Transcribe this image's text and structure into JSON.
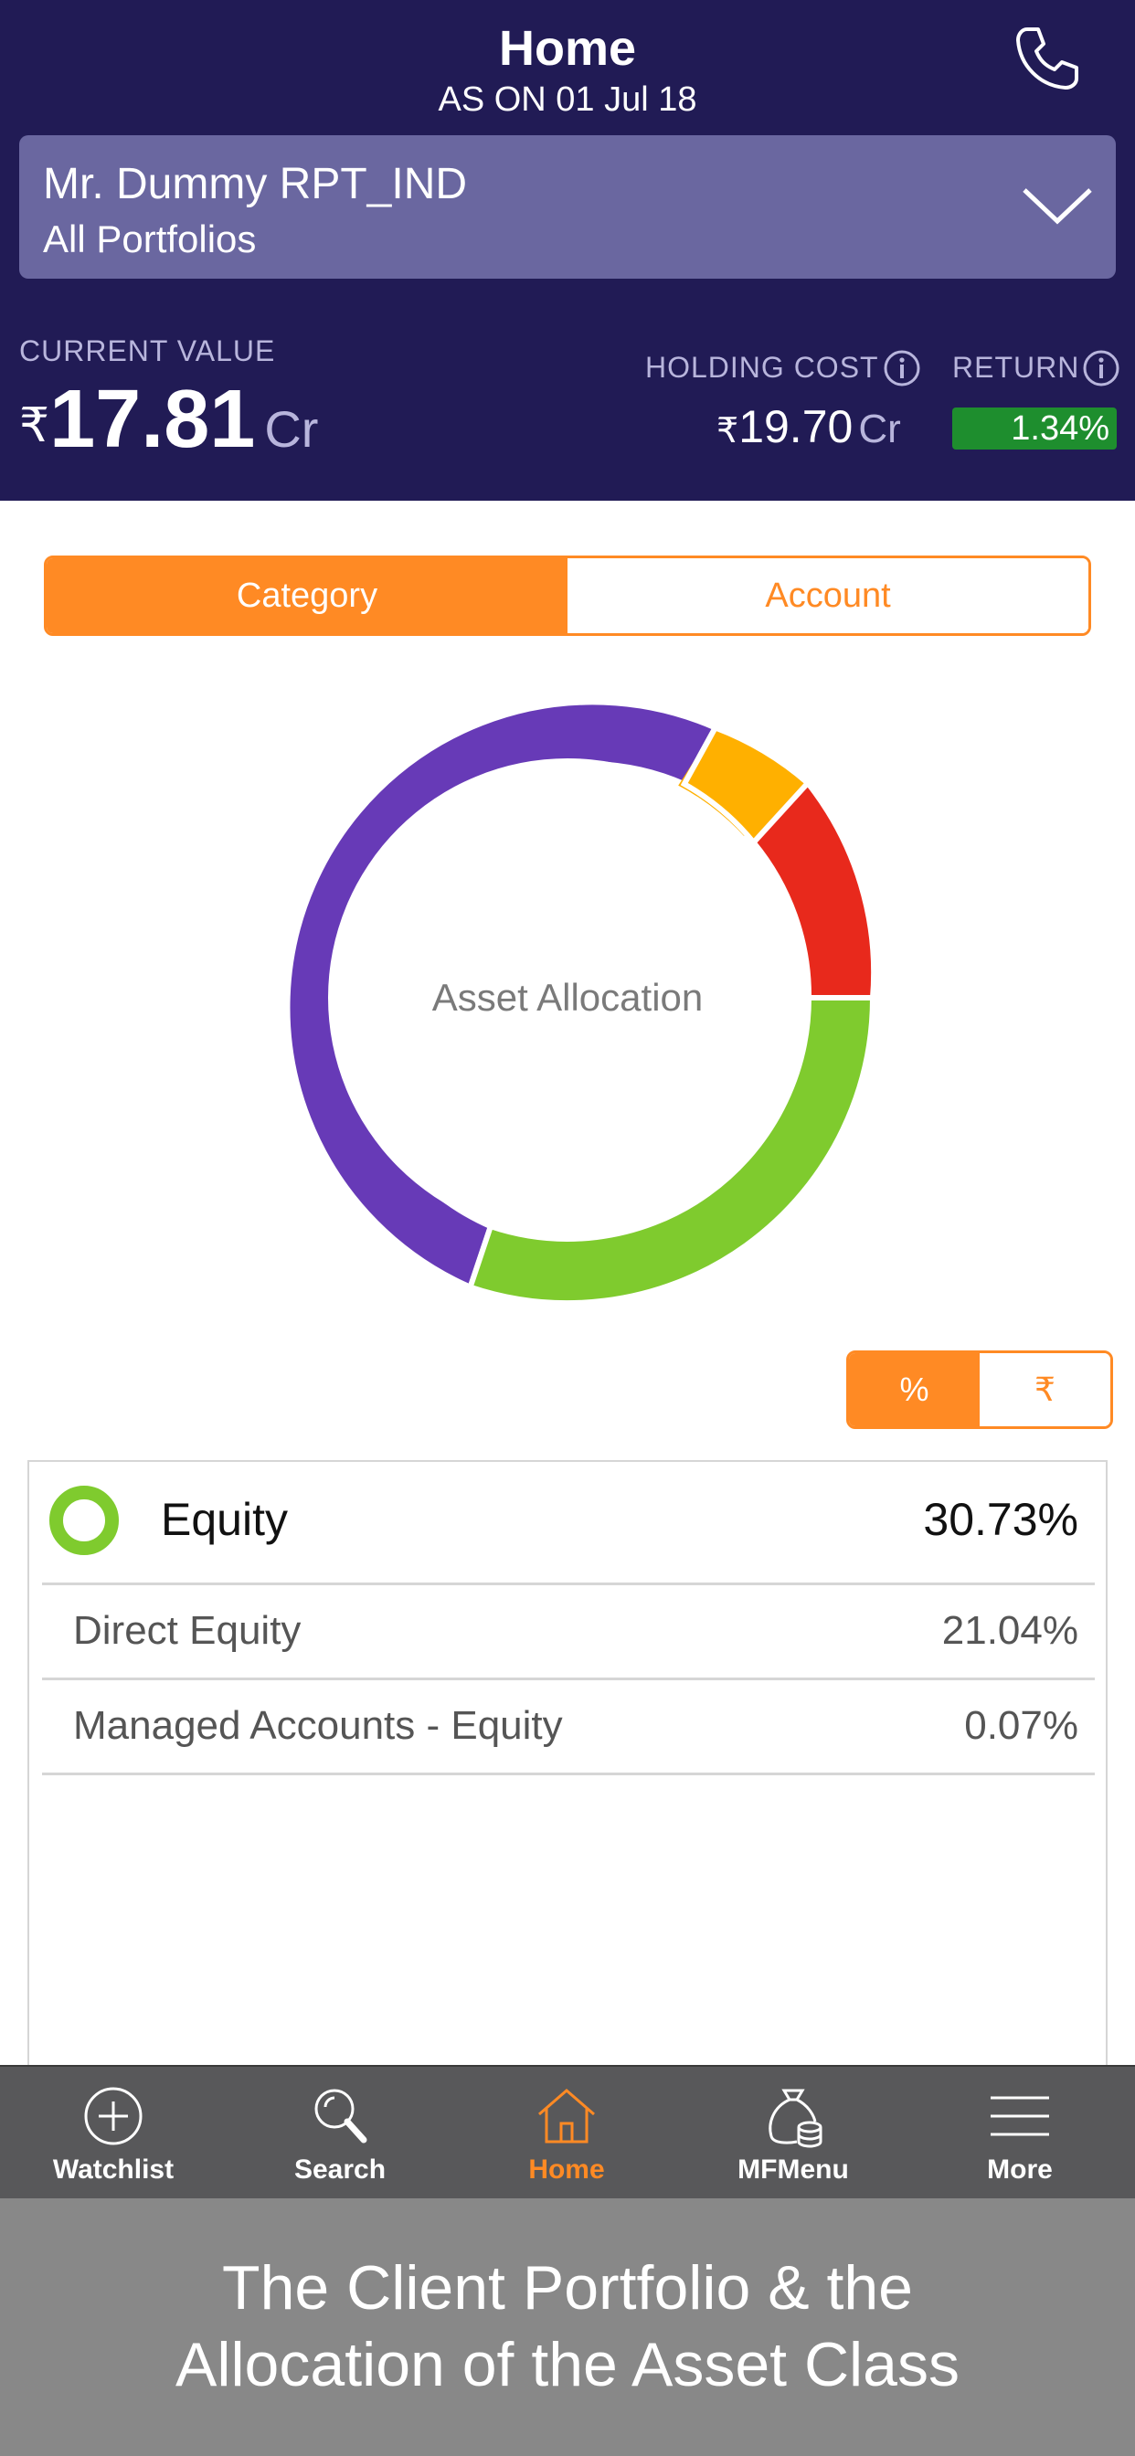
{
  "header": {
    "title": "Home",
    "as_on": "AS ON 01 Jul 18",
    "client_name": "Mr. Dummy RPT_IND",
    "portfolio": "All Portfolios"
  },
  "summary": {
    "current_value_label": "CURRENT VALUE",
    "currency_symbol": "₹",
    "current_value": "17.81",
    "current_value_unit": "Cr",
    "holding_cost_label": "HOLDING COST",
    "holding_cost": "19.70",
    "holding_cost_unit": "Cr",
    "return_label": "RETURN",
    "return_value": "1.34%"
  },
  "view_tabs": {
    "category": "Category",
    "account": "Account",
    "active": "category"
  },
  "donut": {
    "center_label": "Asset Allocation",
    "segments_note": "segment shares read visually from the ring",
    "colors": [
      "#7fcb2e",
      "#673ab7",
      "#ffb000",
      "#e8291c"
    ]
  },
  "unit_toggle": {
    "percent": "%",
    "rupee": "₹",
    "active": "percent"
  },
  "allocation": {
    "category": "Equity",
    "category_pct": "30.73%",
    "category_color": "#7fcb2e",
    "items": [
      {
        "name": "Direct Equity",
        "pct": "21.04%"
      },
      {
        "name": "Managed Accounts - Equity",
        "pct": "0.07%"
      }
    ]
  },
  "tabbar": {
    "items": [
      {
        "label": "Watchlist",
        "icon": "plus-circle-icon"
      },
      {
        "label": "Search",
        "icon": "search-icon"
      },
      {
        "label": "Home",
        "icon": "home-icon"
      },
      {
        "label": "MFMenu",
        "icon": "money-bag-icon"
      },
      {
        "label": "More",
        "icon": "hamburger-icon"
      }
    ],
    "active": "Home",
    "active_color": "#ff8a24"
  },
  "banner": {
    "line1": "The Client Portfolio & the",
    "line2": "Allocation of the Asset Class"
  }
}
